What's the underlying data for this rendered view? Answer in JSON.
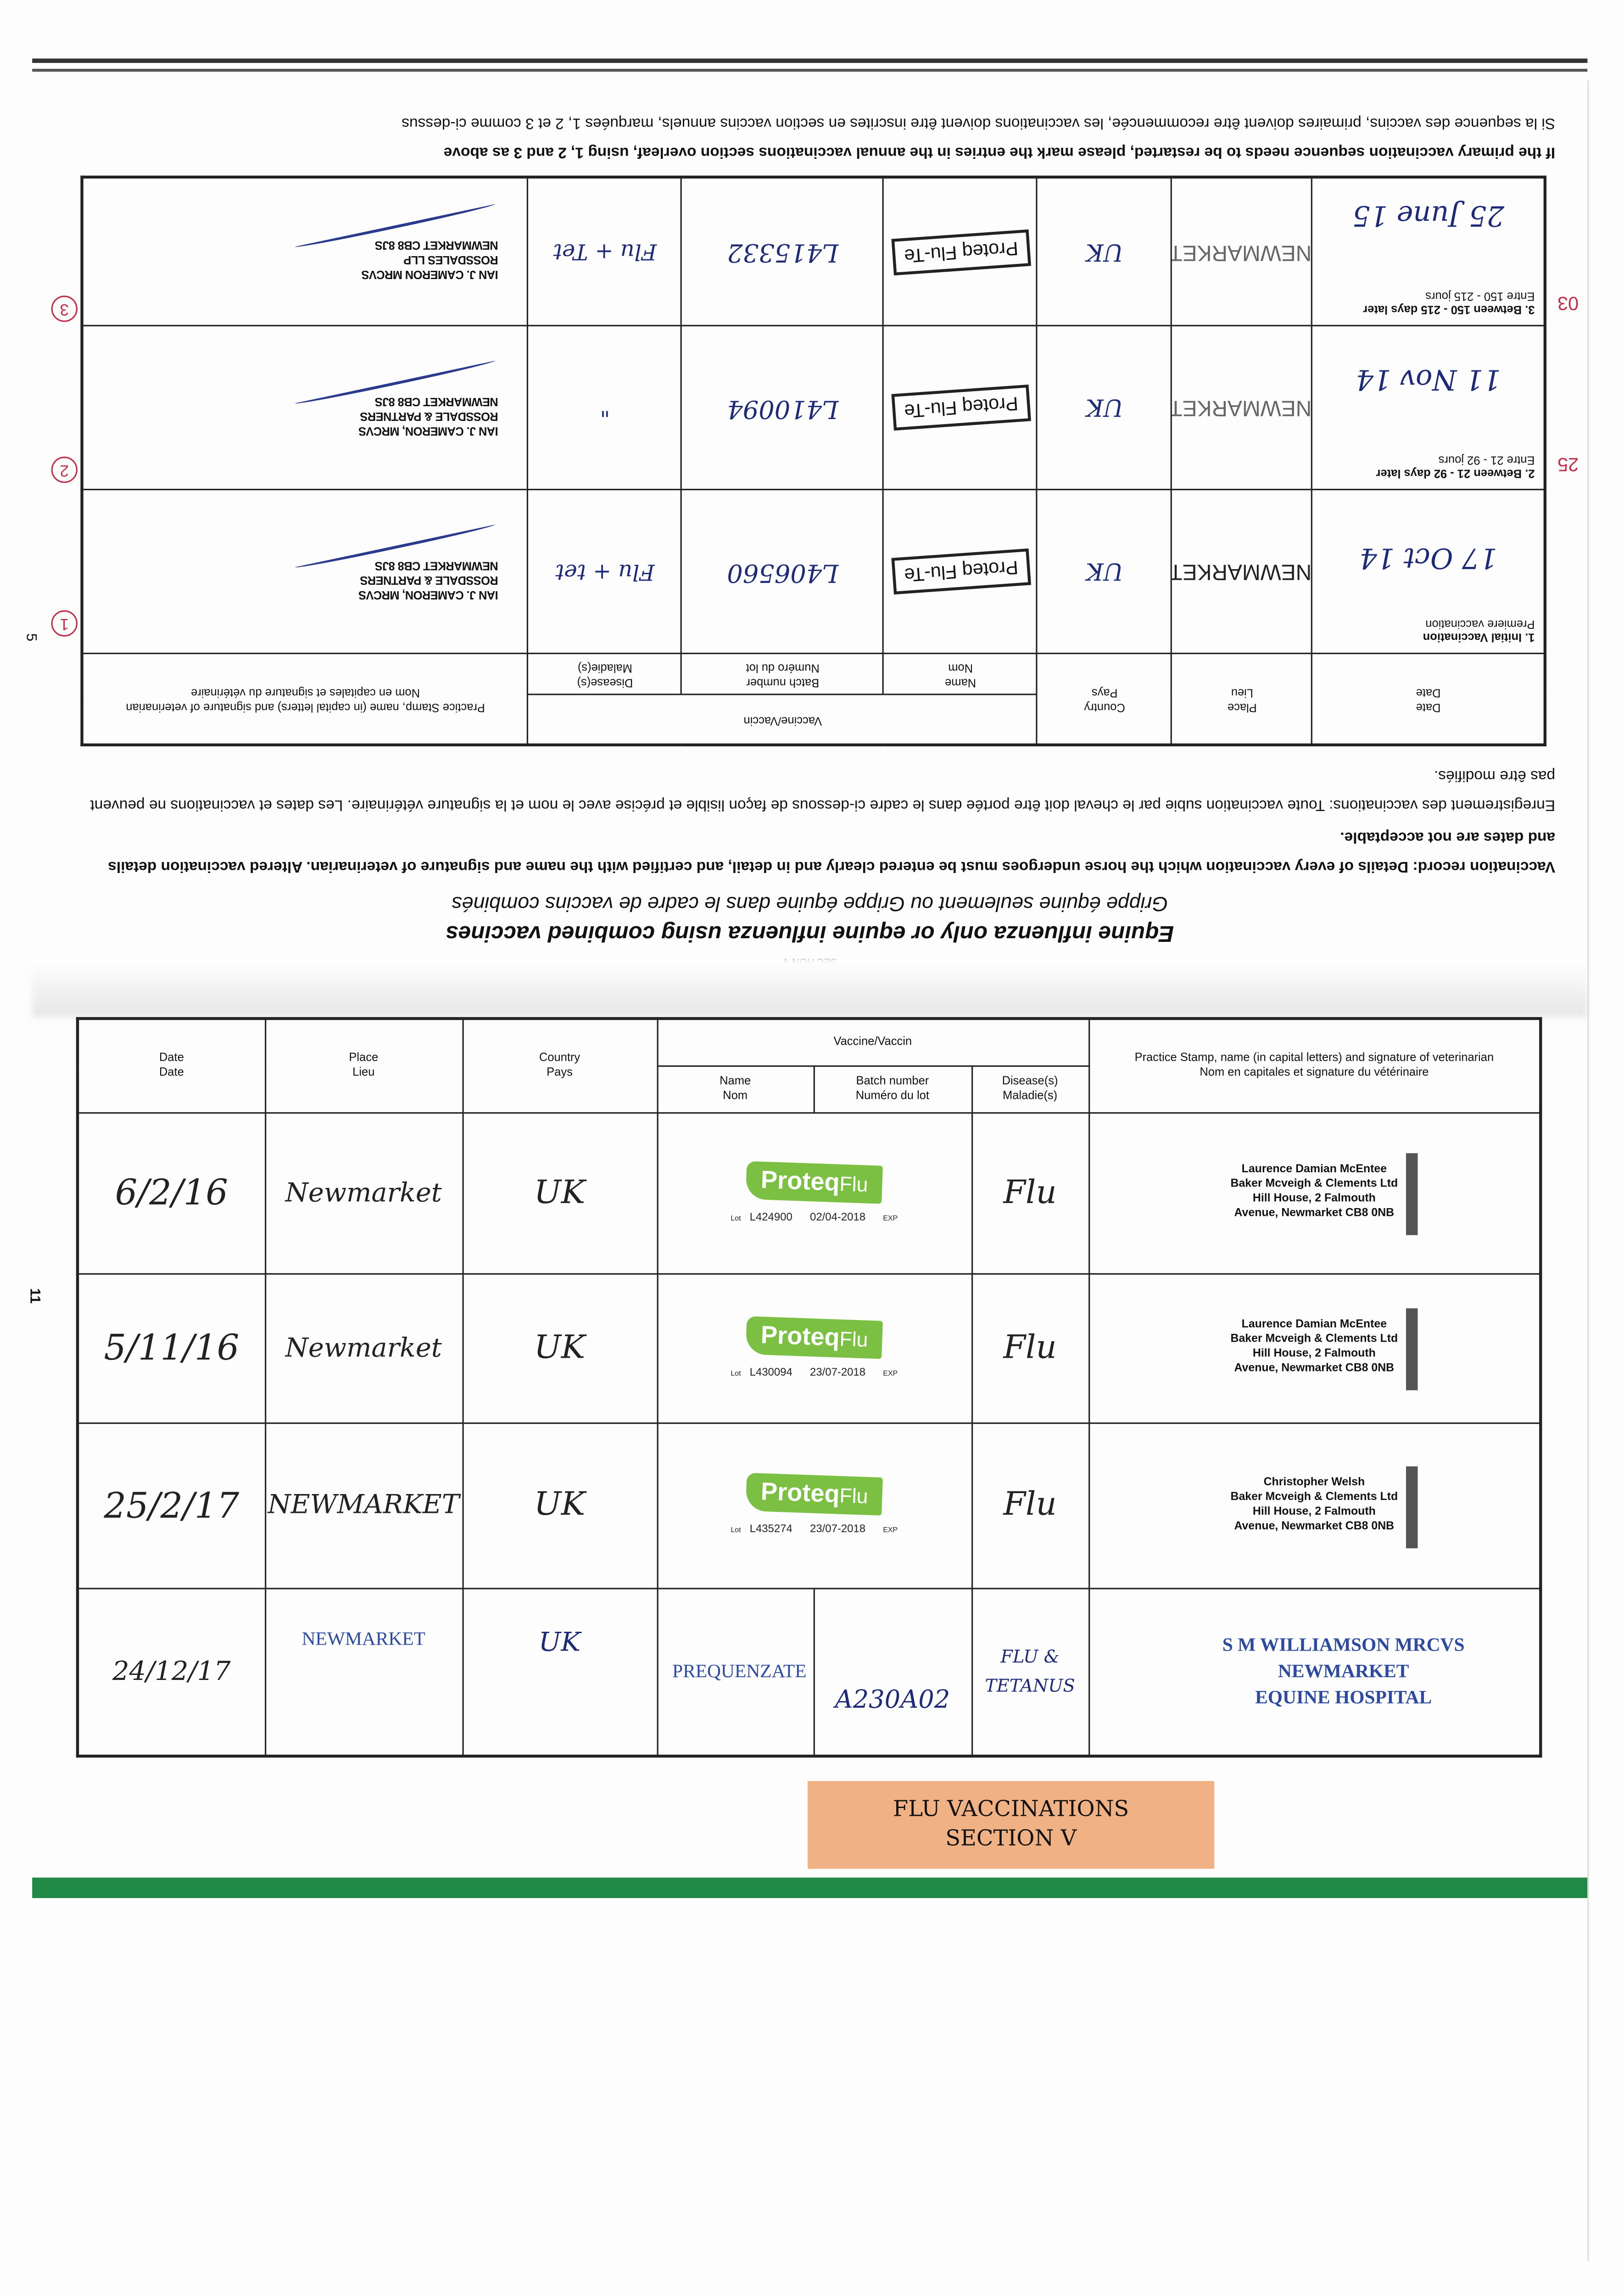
{
  "colors": {
    "ink_blue": "#1c2a78",
    "proteq_green": "#7cc043",
    "label_orange": "#f0b184",
    "bottom_bar_green": "#1f8a46",
    "red_note": "#c0304a"
  },
  "page_numbers": {
    "upper": "5",
    "lower": "11"
  },
  "upper_section": {
    "section_label": "SECTION V",
    "title": "Equine influenza only or equine influenza using combined vaccines",
    "subtitle": "Grippe équine seulement ou Grippe équine dans le cadre de vaccins combinés",
    "instructions_en": "Vaccination record: Details of every vaccination which the horse undergoes must be entered clearly and in detail, and certified with the name and signature of veterinarian. Altered vaccination details and dates are not acceptable.",
    "instructions_fr": "Enregistrement des vaccinations: Toute vaccination subie par le cheval doit être portée dans le cadre ci-dessous de façon lisible et précise avec le nom et la signature vétérinaire. Les dates et vaccinations ne peuvent pas être modifiés.",
    "headers": {
      "date": "Date",
      "date_fr": "Date",
      "place": "Place",
      "place_fr": "Lieu",
      "country": "Country",
      "country_fr": "Pays",
      "vaccine": "Vaccine/Vaccin",
      "name": "Name",
      "name_fr": "Nom",
      "batch": "Batch number",
      "batch_fr": "Numéro du lot",
      "disease": "Disease(s)",
      "disease_fr": "Maladie(s)",
      "stamp": "Practice Stamp, name (in capital letters) and signature of veterinarian",
      "stamp_fr": "Nom en capitales et signature du vétérinaire"
    },
    "rows": [
      {
        "circled": "1",
        "label": "1. Initial Vaccination",
        "label_fr": "Premiere vaccination",
        "date": "17 Oct 14",
        "place": "NEWMARKET",
        "country": "UK",
        "name": "Proteq Flu-Te",
        "batch": "L406560",
        "disease": "Flu + tet",
        "stamp": [
          "IAN J. CAMERON, MRCVS",
          "ROSSDALE & PARTNERS",
          "NEWMARKET CB8 8JS"
        ]
      },
      {
        "circled": "2",
        "label": "2. Between 21 - 92 days later",
        "label_fr": "Entre 21 - 92 jours",
        "date": "11 Nov 14",
        "place": "NEWMARKET",
        "country": "UK",
        "name": "Proteq Flu-Te",
        "batch": "L410094",
        "disease": "\"",
        "stamp": [
          "IAN J. CAMERON, MRCVS",
          "ROSSDALE & PARTNERS",
          "NEWMARKET CB8 8JS"
        ]
      },
      {
        "circled": "3",
        "label": "3. Between 150 - 215 days later",
        "label_fr": "Entre 150 - 215 jours",
        "date": "25 June 15",
        "place": "NEWMARKET",
        "country": "UK",
        "name": "Proteq Flu-Te",
        "batch": "L415332",
        "disease": "Flu + Tet",
        "stamp": [
          "IAN J. CAMERON MRCVS",
          "ROSSDALES LLP",
          "NEWMARKET CB8 8JS"
        ]
      }
    ],
    "margin_notes": [
      "25",
      "03"
    ],
    "footer_en": "If the primary vaccination sequence needs to be restarted, please mark the entries in the annual vaccinations section overleaf, using 1, 2 and 3 as above",
    "footer_fr": "Si la sequence des vaccins, primaires doivent être recommencée, les vaccinations doivent être inscrites en section vaccins annuels, marquées 1, 2 et 3 comme ci-dessus"
  },
  "lower_section": {
    "headers": {
      "date": "Date",
      "date_fr": "Date",
      "place": "Place",
      "place_fr": "Lieu",
      "country": "Country",
      "country_fr": "Pays",
      "vaccine": "Vaccine/Vaccin",
      "name": "Name",
      "name_fr": "Nom",
      "batch": "Batch number",
      "batch_fr": "Numéro du lot",
      "disease": "Disease(s)",
      "disease_fr": "Maladie(s)",
      "stamp": "Practice Stamp, name (in capital letters) and signature of veterinarian",
      "stamp_fr": "Nom en capitales et signature du vétérinaire"
    },
    "lot_label": "Lot",
    "exp_label": "EXP",
    "rows": [
      {
        "date": "6/2/16",
        "place": "Newmarket",
        "country": "UK",
        "vaccine_brand": "Proteq",
        "vaccine_brand_suffix": "Flu",
        "lot": "L424900",
        "exp": "02/04-2018",
        "disease": "Flu",
        "stamp": [
          "Laurence Damian McEntee",
          "Baker Mcveigh & Clements Ltd",
          "Hill House, 2 Falmouth",
          "Avenue, Newmarket CB8 0NB"
        ]
      },
      {
        "date": "5/11/16",
        "place": "Newmarket",
        "country": "UK",
        "vaccine_brand": "Proteq",
        "vaccine_brand_suffix": "Flu",
        "lot": "L430094",
        "exp": "23/07-2018",
        "disease": "Flu",
        "stamp": [
          "Laurence Damian McEntee",
          "Baker Mcveigh & Clements Ltd",
          "Hill House, 2 Falmouth",
          "Avenue, Newmarket CB8 0NB"
        ]
      },
      {
        "date": "25/2/17",
        "place": "NEWMARKET",
        "country": "UK",
        "vaccine_brand": "Proteq",
        "vaccine_brand_suffix": "Flu",
        "lot": "L435274",
        "exp": "23/07-2018",
        "disease": "Flu",
        "stamp": [
          "Christopher Welsh",
          "Baker Mcveigh & Clements Ltd",
          "Hill House, 2 Falmouth",
          "Avenue, Newmarket CB8 0NB"
        ]
      },
      {
        "date": "24/12/17",
        "place": "NEWMARKET",
        "country": "UK",
        "name": "PREQUENZATE",
        "batch": "A230A02",
        "disease": "FLU & TETANUS",
        "stamp": [
          "S M WILLIAMSON MRCVS",
          "NEWMARKET",
          "EQUINE HOSPITAL"
        ]
      }
    ]
  },
  "section_label": {
    "line1": "FLU VACCINATIONS",
    "line2": "SECTION V"
  }
}
